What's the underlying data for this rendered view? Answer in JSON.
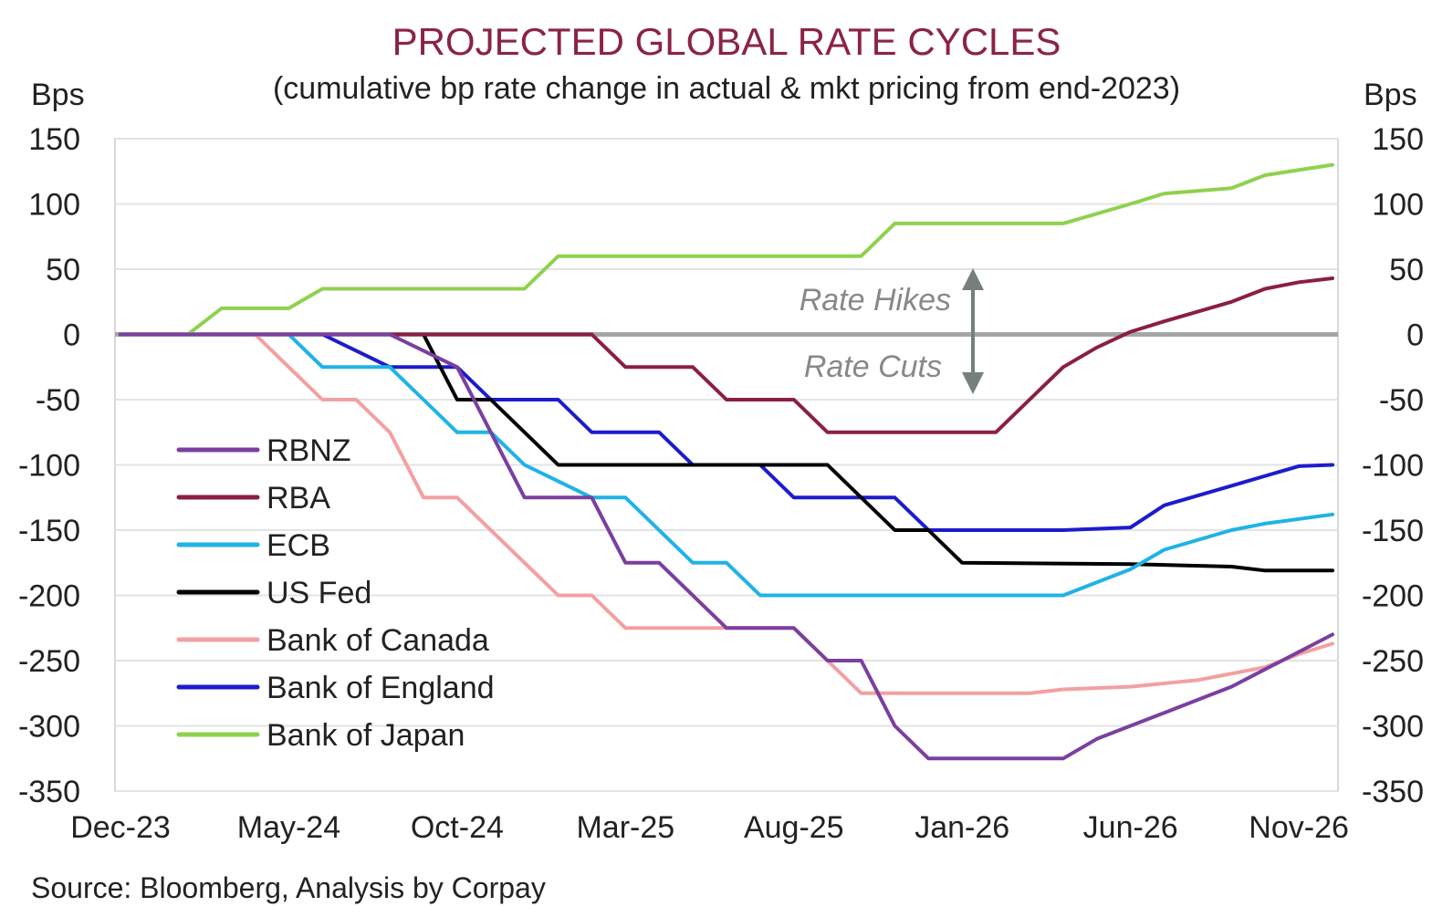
{
  "chart_data": {
    "type": "line",
    "title": "PROJECTED GLOBAL RATE CYCLES",
    "subtitle": "(cumulative bp rate change in actual & mkt pricing from end-2023)",
    "ylabel_left": "Bps",
    "ylabel_right": "Bps",
    "ylim": [
      -350,
      150
    ],
    "yticks": [
      150,
      100,
      50,
      0,
      -50,
      -100,
      -150,
      -200,
      -250,
      -300,
      -350
    ],
    "xlim": [
      "2023-12",
      "2026-12"
    ],
    "xtick_labels": [
      {
        "date": "2023-12",
        "label": "Dec-23"
      },
      {
        "date": "2024-05",
        "label": "May-24"
      },
      {
        "date": "2024-10",
        "label": "Oct-24"
      },
      {
        "date": "2025-03",
        "label": "Mar-25"
      },
      {
        "date": "2025-08",
        "label": "Aug-25"
      },
      {
        "date": "2026-01",
        "label": "Jan-26"
      },
      {
        "date": "2026-06",
        "label": "Jun-26"
      },
      {
        "date": "2026-11",
        "label": "Nov-26"
      }
    ],
    "grid": true,
    "legend_position": "left-center",
    "annotations": [
      "Rate Hikes",
      "Rate Cuts"
    ],
    "source": "Source: Bloomberg, Analysis by Corpay",
    "zero_line_color": "#a6a6a6",
    "series": [
      {
        "name": "RBNZ",
        "color": "#7a3fa0",
        "points": [
          [
            "2023-12",
            0
          ],
          [
            "2024-08",
            0
          ],
          [
            "2024-10",
            -25
          ],
          [
            "2024-11",
            -75
          ],
          [
            "2024-12",
            -125
          ],
          [
            "2025-02",
            -125
          ],
          [
            "2025-03",
            -175
          ],
          [
            "2025-04",
            -175
          ],
          [
            "2025-06",
            -225
          ],
          [
            "2025-08",
            -225
          ],
          [
            "2025-09",
            -250
          ],
          [
            "2025-10",
            -250
          ],
          [
            "2025-11",
            -300
          ],
          [
            "2025-12",
            -325
          ],
          [
            "2026-04",
            -325
          ],
          [
            "2026-05",
            -310
          ],
          [
            "2026-07",
            -290
          ],
          [
            "2026-09",
            -270
          ],
          [
            "2026-12",
            -230
          ]
        ]
      },
      {
        "name": "RBA",
        "color": "#8b1f3f",
        "points": [
          [
            "2023-12",
            0
          ],
          [
            "2025-02",
            0
          ],
          [
            "2025-03",
            -25
          ],
          [
            "2025-05",
            -25
          ],
          [
            "2025-06",
            -50
          ],
          [
            "2025-08",
            -50
          ],
          [
            "2025-09",
            -75
          ],
          [
            "2026-02",
            -75
          ],
          [
            "2026-03",
            -50
          ],
          [
            "2026-04",
            -25
          ],
          [
            "2026-05",
            -10
          ],
          [
            "2026-06",
            2
          ],
          [
            "2026-07",
            10
          ],
          [
            "2026-09",
            25
          ],
          [
            "2026-10",
            35
          ],
          [
            "2026-11",
            40
          ],
          [
            "2026-12",
            43
          ]
        ]
      },
      {
        "name": "ECB",
        "color": "#1fb3e6",
        "points": [
          [
            "2023-12",
            0
          ],
          [
            "2024-05",
            0
          ],
          [
            "2024-06",
            -25
          ],
          [
            "2024-08",
            -25
          ],
          [
            "2024-09",
            -50
          ],
          [
            "2024-10",
            -75
          ],
          [
            "2024-11",
            -75
          ],
          [
            "2024-12",
            -100
          ],
          [
            "2025-02",
            -125
          ],
          [
            "2025-03",
            -125
          ],
          [
            "2025-05",
            -175
          ],
          [
            "2025-06",
            -175
          ],
          [
            "2025-07",
            -200
          ],
          [
            "2026-04",
            -200
          ],
          [
            "2026-06",
            -180
          ],
          [
            "2026-07",
            -165
          ],
          [
            "2026-09",
            -150
          ],
          [
            "2026-10",
            -145
          ],
          [
            "2026-12",
            -138
          ]
        ]
      },
      {
        "name": "US Fed",
        "color": "#000000",
        "points": [
          [
            "2023-12",
            0
          ],
          [
            "2024-08",
            0
          ],
          [
            "2024-09",
            0
          ],
          [
            "2024-10",
            -50
          ],
          [
            "2024-11",
            -50
          ],
          [
            "2025-01",
            -100
          ],
          [
            "2025-09",
            -100
          ],
          [
            "2025-11",
            -150
          ],
          [
            "2025-12",
            -150
          ],
          [
            "2026-01",
            -175
          ],
          [
            "2026-06",
            -176
          ],
          [
            "2026-09",
            -178
          ],
          [
            "2026-10",
            -181
          ],
          [
            "2026-12",
            -181
          ]
        ]
      },
      {
        "name": "Bank of Canada",
        "color": "#f4a0a0",
        "points": [
          [
            "2023-12",
            0
          ],
          [
            "2024-04",
            0
          ],
          [
            "2024-05",
            -25
          ],
          [
            "2024-06",
            -50
          ],
          [
            "2024-07",
            -50
          ],
          [
            "2024-08",
            -75
          ],
          [
            "2024-09",
            -125
          ],
          [
            "2024-10",
            -125
          ],
          [
            "2024-12",
            -175
          ],
          [
            "2025-01",
            -200
          ],
          [
            "2025-02",
            -200
          ],
          [
            "2025-03",
            -225
          ],
          [
            "2025-08",
            -225
          ],
          [
            "2025-10",
            -275
          ],
          [
            "2026-03",
            -275
          ],
          [
            "2026-04",
            -272
          ],
          [
            "2026-06",
            -270
          ],
          [
            "2026-08",
            -265
          ],
          [
            "2026-10",
            -255
          ],
          [
            "2026-11",
            -245
          ],
          [
            "2026-12",
            -237
          ]
        ]
      },
      {
        "name": "Bank of England",
        "color": "#1c1ccc",
        "points": [
          [
            "2023-12",
            0
          ],
          [
            "2024-06",
            0
          ],
          [
            "2024-08",
            -25
          ],
          [
            "2024-10",
            -25
          ],
          [
            "2024-11",
            -50
          ],
          [
            "2025-01",
            -50
          ],
          [
            "2025-02",
            -75
          ],
          [
            "2025-04",
            -75
          ],
          [
            "2025-05",
            -100
          ],
          [
            "2025-07",
            -100
          ],
          [
            "2025-08",
            -125
          ],
          [
            "2025-11",
            -125
          ],
          [
            "2025-12",
            -150
          ],
          [
            "2026-04",
            -150
          ],
          [
            "2026-06",
            -148
          ],
          [
            "2026-07",
            -131
          ],
          [
            "2026-09",
            -116
          ],
          [
            "2026-11",
            -101
          ],
          [
            "2026-12",
            -100
          ]
        ]
      },
      {
        "name": "Bank of Japan",
        "color": "#8fd14f",
        "points": [
          [
            "2023-12",
            0
          ],
          [
            "2024-02",
            0
          ],
          [
            "2024-03",
            20
          ],
          [
            "2024-05",
            20
          ],
          [
            "2024-06",
            35
          ],
          [
            "2024-12",
            35
          ],
          [
            "2025-01",
            60
          ],
          [
            "2025-10",
            60
          ],
          [
            "2025-11",
            85
          ],
          [
            "2026-04",
            85
          ],
          [
            "2026-06",
            100
          ],
          [
            "2026-07",
            108
          ],
          [
            "2026-09",
            112
          ],
          [
            "2026-10",
            122
          ],
          [
            "2026-12",
            130
          ]
        ]
      }
    ]
  }
}
